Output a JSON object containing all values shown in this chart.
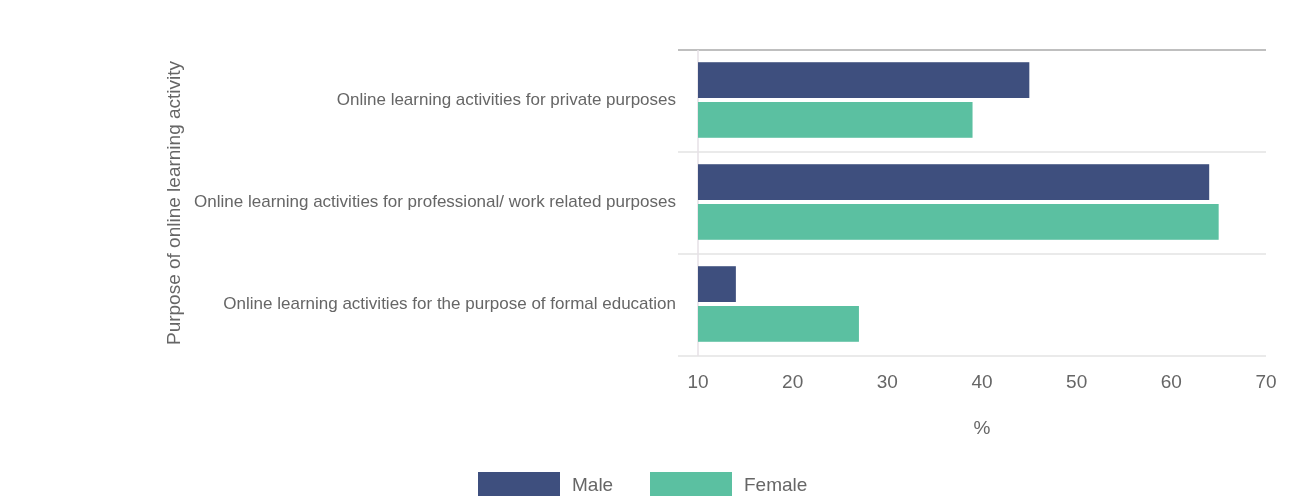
{
  "chart_data": {
    "type": "bar",
    "orientation": "horizontal",
    "categories": [
      "Online learning activities for private purposes",
      "Online learning activities for professional/ work related purposes",
      "Online learning activities for  the purpose of formal education"
    ],
    "series": [
      {
        "name": "Male",
        "color": "#3e4f7e",
        "values": [
          45,
          64,
          14
        ]
      },
      {
        "name": "Female",
        "color": "#5bc0a1",
        "values": [
          39,
          65,
          27
        ]
      }
    ],
    "xlim": [
      10,
      70
    ],
    "xticks": [
      10,
      20,
      30,
      40,
      50,
      60,
      70
    ],
    "xlabel": "%",
    "ylabel": "Purpose of online learning activity",
    "grid": "y",
    "legend": "bottom"
  }
}
